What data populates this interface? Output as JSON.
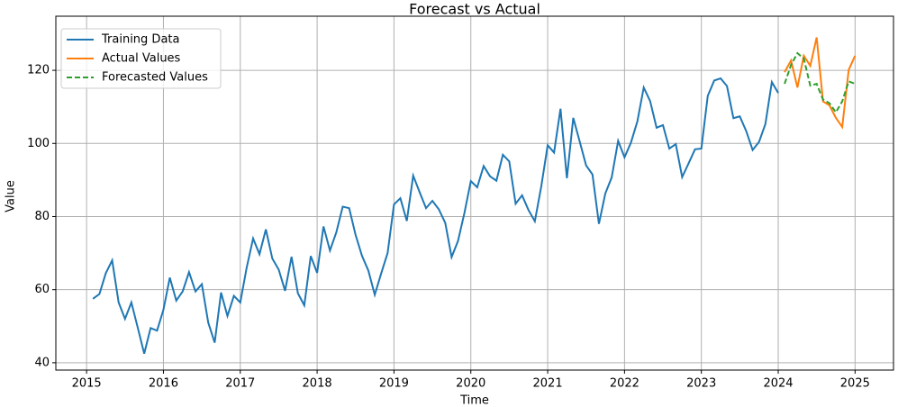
{
  "chart_data": {
    "type": "line",
    "title": "Forecast vs Actual",
    "xlabel": "Time",
    "ylabel": "Value",
    "series": [
      {
        "name": "Training Data",
        "color": "#1f77b4",
        "linestyle": "solid",
        "x": [
          2015.083,
          2015.167,
          2015.25,
          2015.333,
          2015.417,
          2015.5,
          2015.583,
          2015.667,
          2015.75,
          2015.833,
          2015.917,
          2016.0,
          2016.083,
          2016.167,
          2016.25,
          2016.333,
          2016.417,
          2016.5,
          2016.583,
          2016.667,
          2016.75,
          2016.833,
          2016.917,
          2017.0,
          2017.083,
          2017.167,
          2017.25,
          2017.333,
          2017.417,
          2017.5,
          2017.583,
          2017.667,
          2017.75,
          2017.833,
          2017.917,
          2018.0,
          2018.083,
          2018.167,
          2018.25,
          2018.333,
          2018.417,
          2018.5,
          2018.583,
          2018.667,
          2018.75,
          2018.833,
          2018.917,
          2019.0,
          2019.083,
          2019.167,
          2019.25,
          2019.333,
          2019.417,
          2019.5,
          2019.583,
          2019.667,
          2019.75,
          2019.833,
          2019.917,
          2020.0,
          2020.083,
          2020.167,
          2020.25,
          2020.333,
          2020.417,
          2020.5,
          2020.583,
          2020.667,
          2020.75,
          2020.833,
          2020.917,
          2021.0,
          2021.083,
          2021.167,
          2021.25,
          2021.333,
          2021.417,
          2021.5,
          2021.583,
          2021.667,
          2021.75,
          2021.833,
          2021.917,
          2022.0,
          2022.083,
          2022.167,
          2022.25,
          2022.333,
          2022.417,
          2022.5,
          2022.583,
          2022.667,
          2022.75,
          2022.833,
          2022.917,
          2023.0,
          2023.083,
          2023.167,
          2023.25,
          2023.333,
          2023.417,
          2023.5,
          2023.583,
          2023.667,
          2023.75,
          2023.833,
          2023.917,
          2024.0
        ],
        "values": [
          57.5,
          58.8,
          64.5,
          68,
          56.5,
          52,
          56.5,
          49.5,
          42.5,
          49.5,
          48.8,
          54.5,
          63.3,
          57,
          59.5,
          64.8,
          59.5,
          61.5,
          51,
          45.5,
          59.2,
          52.8,
          58.3,
          56.5,
          66,
          74,
          69.7,
          76.5,
          68.5,
          65.5,
          59.7,
          69,
          59,
          55.7,
          69.2,
          64.6,
          77.3,
          70.7,
          75.7,
          82.7,
          82.3,
          75,
          69.3,
          65.2,
          58.6,
          64.4,
          70,
          83.3,
          85,
          78.8,
          91.2,
          86.7,
          82.3,
          84.3,
          82,
          78.3,
          68.9,
          73.3,
          81,
          89.7,
          88,
          93.8,
          91,
          89.8,
          96.9,
          95.1,
          83.5,
          85.8,
          81.8,
          78.7,
          88.3,
          99.5,
          97.5,
          109.5,
          90.5,
          107,
          100.5,
          94,
          91.5,
          78,
          86.3,
          90.7,
          100.7,
          96.2,
          100.2,
          106,
          115.3,
          111.6,
          104.3,
          105,
          98.6,
          99.8,
          90.8,
          94.5,
          98.4,
          98.6,
          113,
          117.2,
          117.8,
          115.7,
          106.9,
          107.4,
          103.4,
          98.2,
          100.4,
          105.3,
          116.8,
          113.8
        ]
      },
      {
        "name": "Actual Values",
        "color": "#ff7f0e",
        "linestyle": "solid",
        "x": [
          2024.083,
          2024.167,
          2024.25,
          2024.333,
          2024.417,
          2024.5,
          2024.583,
          2024.667,
          2024.75,
          2024.833,
          2024.917,
          2025.0
        ],
        "values": [
          119.5,
          122.7,
          115.3,
          124,
          121.2,
          129,
          111.5,
          110.4,
          107,
          104.5,
          120.1,
          124
        ]
      },
      {
        "name": "Forecasted Values",
        "color": "#2ca02c",
        "linestyle": "dashed",
        "x": [
          2024.083,
          2024.167,
          2024.25,
          2024.333,
          2024.417,
          2024.5,
          2024.583,
          2024.667,
          2024.75,
          2024.833,
          2024.917,
          2025.0
        ],
        "values": [
          116.3,
          121.5,
          124.7,
          123.2,
          115.8,
          116.3,
          112,
          111,
          108.5,
          111.5,
          117,
          116.3
        ]
      }
    ],
    "xlim": [
      2014.6,
      2025.5
    ],
    "xticks": [
      2015,
      2016,
      2017,
      2018,
      2019,
      2020,
      2021,
      2022,
      2023,
      2024,
      2025
    ],
    "ylim": [
      38,
      134.8
    ],
    "yticks": [
      40,
      60,
      80,
      100,
      120
    ],
    "grid": true,
    "legend": "upper left"
  }
}
